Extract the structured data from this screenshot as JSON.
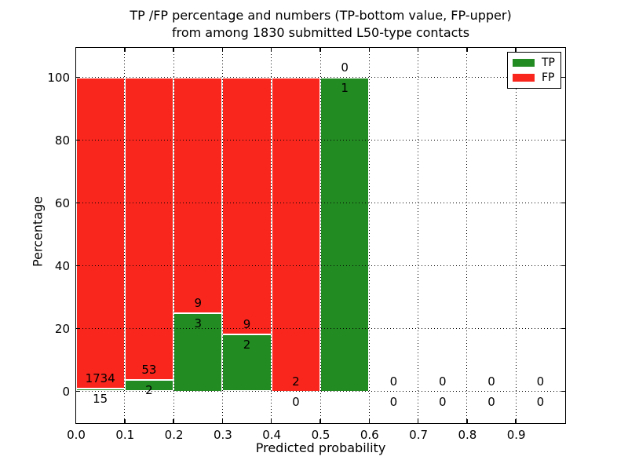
{
  "chart_data": {
    "type": "bar",
    "stacked": true,
    "title_line1": "TP /FP percentage and numbers (TP-bottom value, FP-upper)",
    "title_line2": "from among 1830 submitted L50-type contacts",
    "total_submitted": 1830,
    "xlabel": "Predicted probability",
    "ylabel": "Percentage",
    "x_tick_labels": [
      "0.0",
      "0.1",
      "0.2",
      "0.3",
      "0.4",
      "0.5",
      "0.6",
      "0.7",
      "0.8",
      "0.9"
    ],
    "y_tick_labels": [
      "0",
      "20",
      "40",
      "60",
      "80",
      "100"
    ],
    "y_ticks": [
      0,
      20,
      40,
      60,
      80,
      100
    ],
    "xlim": [
      0.0,
      1.0
    ],
    "ylim": [
      0,
      100
    ],
    "grid": "dotted",
    "legend_position": "upper right",
    "legend": [
      {
        "label": "TP",
        "color": "#228B22"
      },
      {
        "label": "FP",
        "color": "#F9261D"
      }
    ],
    "bins": [
      {
        "range": [
          0.0,
          0.1
        ],
        "tp": 15,
        "fp": 1734,
        "tp_pct": 0.86,
        "fp_pct": 99.14
      },
      {
        "range": [
          0.1,
          0.2
        ],
        "tp": 2,
        "fp": 53,
        "tp_pct": 3.64,
        "fp_pct": 96.36
      },
      {
        "range": [
          0.2,
          0.3
        ],
        "tp": 3,
        "fp": 9,
        "tp_pct": 25.0,
        "fp_pct": 75.0
      },
      {
        "range": [
          0.3,
          0.4
        ],
        "tp": 2,
        "fp": 9,
        "tp_pct": 18.18,
        "fp_pct": 81.82
      },
      {
        "range": [
          0.4,
          0.5
        ],
        "tp": 0,
        "fp": 2,
        "tp_pct": 0.0,
        "fp_pct": 100.0
      },
      {
        "range": [
          0.5,
          0.6
        ],
        "tp": 1,
        "fp": 0,
        "tp_pct": 100.0,
        "fp_pct": 0.0
      },
      {
        "range": [
          0.6,
          0.7
        ],
        "tp": 0,
        "fp": 0,
        "tp_pct": 0.0,
        "fp_pct": 0.0
      },
      {
        "range": [
          0.7,
          0.8
        ],
        "tp": 0,
        "fp": 0,
        "tp_pct": 0.0,
        "fp_pct": 0.0
      },
      {
        "range": [
          0.8,
          0.9
        ],
        "tp": 0,
        "fp": 0,
        "tp_pct": 0.0,
        "fp_pct": 0.0
      },
      {
        "range": [
          0.9,
          1.0
        ],
        "tp": 0,
        "fp": 0,
        "tp_pct": 0.0,
        "fp_pct": 0.0
      }
    ],
    "colors": {
      "tp_bar": "#228B22",
      "fp_bar": "#F9261D",
      "bar_edge": "#FFFFFF",
      "axes": "#000000",
      "background": "#FFFFFF"
    }
  }
}
